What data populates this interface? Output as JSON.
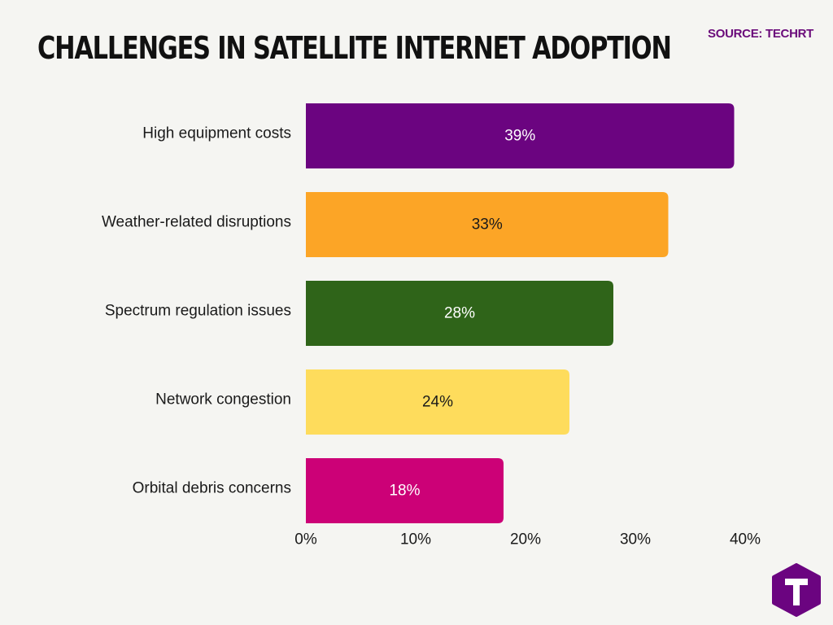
{
  "header": {
    "title": "CHALLENGES IN SATELLITE INTERNET ADOPTION",
    "source": "SOURCE: TECHRT"
  },
  "chart_data": {
    "type": "bar",
    "orientation": "horizontal",
    "categories": [
      "High equipment costs",
      "Weather-related disruptions",
      "Spectrum regulation issues",
      "Network congestion",
      "Orbital debris concerns"
    ],
    "values": [
      39,
      33,
      28,
      24,
      18
    ],
    "value_labels": [
      "39%",
      "33%",
      "28%",
      "24%",
      "18%"
    ],
    "colors": [
      "#6b0480",
      "#fca526",
      "#2f6419",
      "#fedc5c",
      "#cc0177"
    ],
    "label_colors": [
      "#ffffff",
      "#1a1a1a",
      "#ffffff",
      "#1a1a1a",
      "#ffffff"
    ],
    "xlim": [
      0,
      40
    ],
    "xticks": [
      0,
      10,
      20,
      30,
      40
    ],
    "xtick_labels": [
      "0%",
      "10%",
      "20%",
      "30%",
      "40%"
    ],
    "grid": false,
    "legend": "none"
  },
  "logo": {
    "icon": "techrt-logo-icon",
    "colors": [
      "#6b0480",
      "#ffffff"
    ]
  }
}
